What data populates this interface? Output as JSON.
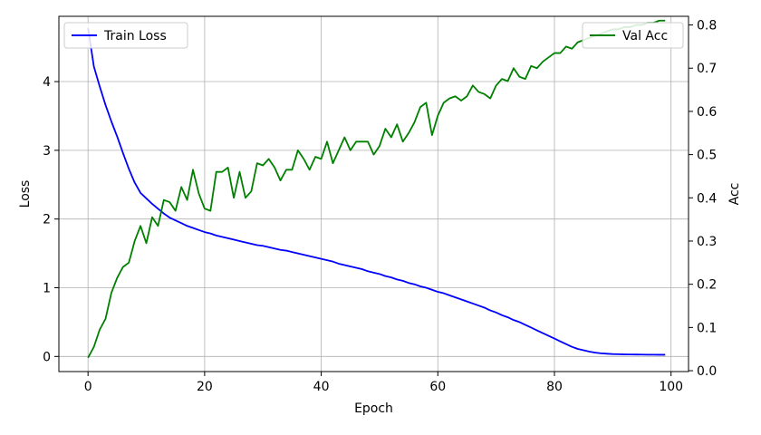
{
  "chart_data": {
    "type": "line",
    "title": "",
    "xlabel": "Epoch",
    "ylabel_left": "Loss",
    "ylabel_right": "Acc",
    "xlim": [
      -5,
      103
    ],
    "ylim_left": [
      -0.22,
      4.95
    ],
    "ylim_right": [
      -0.002,
      0.82
    ],
    "xticks": [
      0,
      20,
      40,
      60,
      80,
      100
    ],
    "yticks_left": [
      0,
      1,
      2,
      3,
      4
    ],
    "yticks_right": [
      0.0,
      0.1,
      0.2,
      0.3,
      0.4,
      0.5,
      0.6,
      0.7,
      0.8
    ],
    "grid": true,
    "series": [
      {
        "name": "Train Loss",
        "axis": "left",
        "color": "#0000ff",
        "x": [
          0,
          1,
          2,
          3,
          4,
          5,
          6,
          7,
          8,
          9,
          10,
          11,
          12,
          13,
          14,
          15,
          16,
          17,
          18,
          19,
          20,
          21,
          22,
          23,
          24,
          25,
          26,
          27,
          28,
          29,
          30,
          31,
          32,
          33,
          34,
          35,
          36,
          37,
          38,
          39,
          40,
          41,
          42,
          43,
          44,
          45,
          46,
          47,
          48,
          49,
          50,
          51,
          52,
          53,
          54,
          55,
          56,
          57,
          58,
          59,
          60,
          61,
          62,
          63,
          64,
          65,
          66,
          67,
          68,
          69,
          70,
          71,
          72,
          73,
          74,
          75,
          76,
          77,
          78,
          79,
          80,
          81,
          82,
          83,
          84,
          85,
          86,
          87,
          88,
          89,
          90,
          91,
          92,
          93,
          94,
          95,
          96,
          97,
          98,
          99
        ],
        "values": [
          4.78,
          4.22,
          3.93,
          3.66,
          3.42,
          3.2,
          2.96,
          2.73,
          2.53,
          2.38,
          2.3,
          2.22,
          2.15,
          2.08,
          2.02,
          1.98,
          1.94,
          1.9,
          1.87,
          1.84,
          1.81,
          1.79,
          1.76,
          1.74,
          1.72,
          1.7,
          1.68,
          1.66,
          1.64,
          1.62,
          1.61,
          1.59,
          1.57,
          1.55,
          1.54,
          1.52,
          1.5,
          1.48,
          1.46,
          1.44,
          1.42,
          1.4,
          1.38,
          1.35,
          1.33,
          1.31,
          1.29,
          1.27,
          1.24,
          1.22,
          1.2,
          1.17,
          1.15,
          1.12,
          1.1,
          1.07,
          1.05,
          1.02,
          1.0,
          0.97,
          0.94,
          0.92,
          0.89,
          0.86,
          0.83,
          0.8,
          0.77,
          0.74,
          0.71,
          0.67,
          0.64,
          0.6,
          0.57,
          0.53,
          0.5,
          0.46,
          0.42,
          0.38,
          0.34,
          0.3,
          0.26,
          0.22,
          0.18,
          0.14,
          0.11,
          0.09,
          0.07,
          0.055,
          0.045,
          0.04,
          0.035,
          0.032,
          0.03,
          0.029,
          0.028,
          0.027,
          0.026,
          0.026,
          0.025,
          0.025
        ]
      },
      {
        "name": "Val Acc",
        "axis": "right",
        "color": "#008000",
        "x": [
          0,
          1,
          2,
          3,
          4,
          5,
          6,
          7,
          8,
          9,
          10,
          11,
          12,
          13,
          14,
          15,
          16,
          17,
          18,
          19,
          20,
          21,
          22,
          23,
          24,
          25,
          26,
          27,
          28,
          29,
          30,
          31,
          32,
          33,
          34,
          35,
          36,
          37,
          38,
          39,
          40,
          41,
          42,
          43,
          44,
          45,
          46,
          47,
          48,
          49,
          50,
          51,
          52,
          53,
          54,
          55,
          56,
          57,
          58,
          59,
          60,
          61,
          62,
          63,
          64,
          65,
          66,
          67,
          68,
          69,
          70,
          71,
          72,
          73,
          74,
          75,
          76,
          77,
          78,
          79,
          80,
          81,
          82,
          83,
          84,
          85,
          86,
          87,
          88,
          89,
          90,
          91,
          92,
          93,
          94,
          95,
          96,
          97,
          98,
          99
        ],
        "values": [
          0.03,
          0.055,
          0.095,
          0.12,
          0.18,
          0.215,
          0.24,
          0.25,
          0.3,
          0.335,
          0.295,
          0.355,
          0.335,
          0.395,
          0.39,
          0.37,
          0.425,
          0.395,
          0.465,
          0.41,
          0.375,
          0.37,
          0.46,
          0.46,
          0.47,
          0.4,
          0.46,
          0.4,
          0.415,
          0.48,
          0.475,
          0.49,
          0.47,
          0.44,
          0.465,
          0.465,
          0.51,
          0.49,
          0.465,
          0.495,
          0.49,
          0.53,
          0.48,
          0.51,
          0.54,
          0.51,
          0.53,
          0.53,
          0.53,
          0.5,
          0.52,
          0.56,
          0.54,
          0.57,
          0.53,
          0.55,
          0.575,
          0.61,
          0.62,
          0.545,
          0.59,
          0.62,
          0.63,
          0.635,
          0.625,
          0.635,
          0.66,
          0.645,
          0.64,
          0.63,
          0.66,
          0.675,
          0.67,
          0.7,
          0.68,
          0.675,
          0.705,
          0.7,
          0.715,
          0.725,
          0.735,
          0.735,
          0.75,
          0.745,
          0.76,
          0.765,
          0.77,
          0.775,
          0.78,
          0.785,
          0.79,
          0.79,
          0.795,
          0.795,
          0.8,
          0.8,
          0.805,
          0.805,
          0.81,
          0.81
        ]
      }
    ],
    "legends": [
      {
        "position": "upper-left",
        "entries": [
          "Train Loss"
        ]
      },
      {
        "position": "upper-right",
        "entries": [
          "Val Acc"
        ]
      }
    ]
  }
}
